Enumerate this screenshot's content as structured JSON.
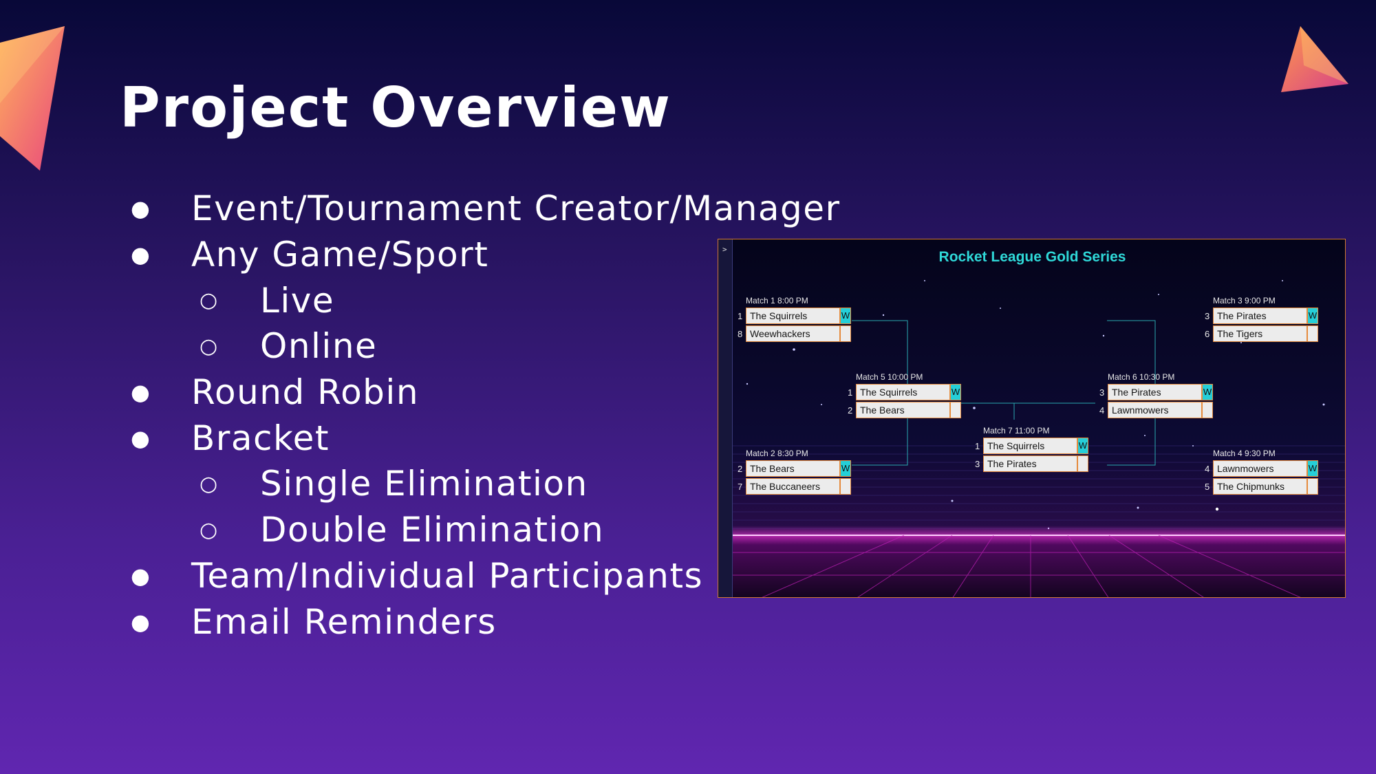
{
  "slide": {
    "title": "Project Overview",
    "bullets": [
      {
        "text": "Event/Tournament Creator/Manager",
        "level": 1
      },
      {
        "text": "Any Game/Sport",
        "level": 1
      },
      {
        "text": "Live",
        "level": 2
      },
      {
        "text": "Online",
        "level": 2
      },
      {
        "text": "Round Robin",
        "level": 1
      },
      {
        "text": "Bracket",
        "level": 1
      },
      {
        "text": "Single Elimination",
        "level": 2
      },
      {
        "text": "Double Elimination",
        "level": 2
      },
      {
        "text": "Team/Individual Participants",
        "level": 1
      },
      {
        "text": "Email Reminders",
        "level": 1
      }
    ],
    "markers": {
      "level1": "●",
      "level2": "○"
    }
  },
  "bracket": {
    "sidebar_toggle": ">",
    "title": "Rocket League Gold Series",
    "win_label": "W",
    "colors": {
      "title": "#2fd8d8",
      "win": "#25cfd8",
      "border": "#e58a3c",
      "horizon": "#ff3de0"
    },
    "matches": {
      "m1": {
        "label": "Match 1 8:00 PM",
        "teams": [
          {
            "seed": "1",
            "name": "The Squirrels",
            "winner": true
          },
          {
            "seed": "8",
            "name": "Weewhackers",
            "winner": false
          }
        ]
      },
      "m2": {
        "label": "Match 2 8:30 PM",
        "teams": [
          {
            "seed": "2",
            "name": "The Bears",
            "winner": true
          },
          {
            "seed": "7",
            "name": "The Buccaneers",
            "winner": false
          }
        ]
      },
      "m3": {
        "label": "Match 3 9:00 PM",
        "teams": [
          {
            "seed": "3",
            "name": "The Pirates",
            "winner": true
          },
          {
            "seed": "6",
            "name": "The Tigers",
            "winner": false
          }
        ]
      },
      "m4": {
        "label": "Match 4 9:30 PM",
        "teams": [
          {
            "seed": "4",
            "name": "Lawnmowers",
            "winner": true
          },
          {
            "seed": "5",
            "name": "The Chipmunks",
            "winner": false
          }
        ]
      },
      "m5": {
        "label": "Match 5 10:00 PM",
        "teams": [
          {
            "seed": "1",
            "name": "The Squirrels",
            "winner": true
          },
          {
            "seed": "2",
            "name": "The Bears",
            "winner": false
          }
        ]
      },
      "m6": {
        "label": "Match 6 10:30 PM",
        "teams": [
          {
            "seed": "3",
            "name": "The Pirates",
            "winner": true
          },
          {
            "seed": "4",
            "name": "Lawnmowers",
            "winner": false
          }
        ]
      },
      "m7": {
        "label": "Match 7 11:00 PM",
        "teams": [
          {
            "seed": "1",
            "name": "The Squirrels",
            "winner": true
          },
          {
            "seed": "3",
            "name": "The Pirates",
            "winner": false
          }
        ]
      }
    }
  }
}
